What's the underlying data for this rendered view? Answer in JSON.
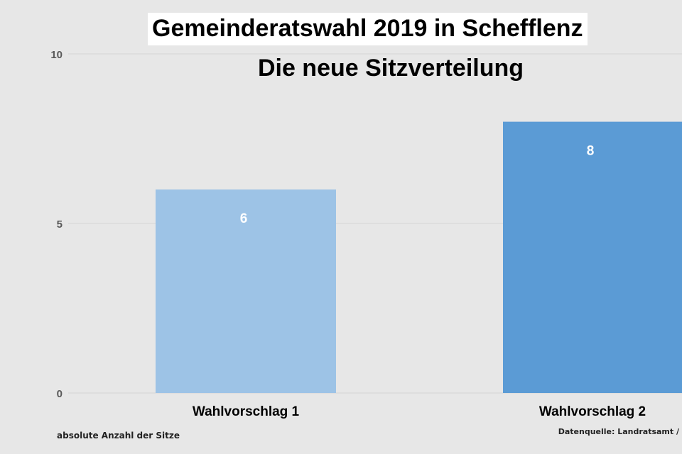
{
  "chart_data": {
    "type": "bar",
    "title": "Gemeinderatswahl 2019 in Schefflenz",
    "subtitle": "Die neue Sitzverteilung",
    "categories": [
      "Wahlvorschlag 1",
      "Wahlvorschlag 2"
    ],
    "values": [
      6,
      8
    ],
    "data_labels": [
      "6",
      "8"
    ],
    "ylim": [
      0,
      10
    ],
    "yticks": [
      "0",
      "5",
      "10"
    ],
    "grid": true,
    "colors": [
      "#9dc3e6",
      "#5b9bd5"
    ],
    "footnote": "absolute Anzahl der Sitze",
    "source": "Datenquelle: Landratsamt /"
  }
}
